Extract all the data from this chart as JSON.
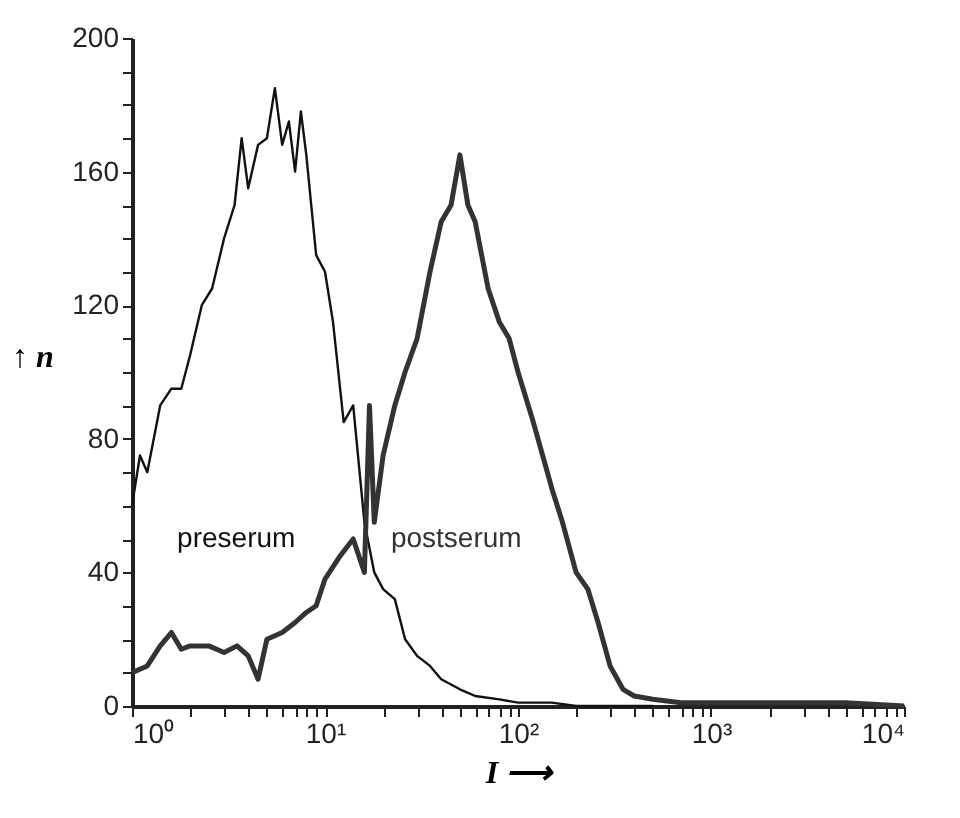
{
  "chart_data": {
    "type": "line",
    "xlabel": "I ⟶",
    "ylabel": "↑ n",
    "log": "x",
    "marker": "none",
    "line_style": "solid",
    "xlim": [
      1,
      10000
    ],
    "ylim": [
      0,
      200
    ],
    "xticks": [
      {
        "value": 1,
        "label": "10⁰"
      },
      {
        "value": 2,
        "label": null
      },
      {
        "value": 3,
        "label": null
      },
      {
        "value": 4,
        "label": null
      },
      {
        "value": 5,
        "label": null
      },
      {
        "value": 6,
        "label": null
      },
      {
        "value": 7,
        "label": null
      },
      {
        "value": 8,
        "label": null
      },
      {
        "value": 9,
        "label": null
      },
      {
        "value": 10,
        "label": "10¹"
      },
      {
        "value": 20,
        "label": null
      },
      {
        "value": 30,
        "label": null
      },
      {
        "value": 40,
        "label": null
      },
      {
        "value": 50,
        "label": null
      },
      {
        "value": 60,
        "label": null
      },
      {
        "value": 70,
        "label": null
      },
      {
        "value": 80,
        "label": null
      },
      {
        "value": 90,
        "label": null
      },
      {
        "value": 100,
        "label": "10²"
      },
      {
        "value": 200,
        "label": null
      },
      {
        "value": 300,
        "label": null
      },
      {
        "value": 400,
        "label": null
      },
      {
        "value": 500,
        "label": null
      },
      {
        "value": 600,
        "label": null
      },
      {
        "value": 700,
        "label": null
      },
      {
        "value": 800,
        "label": null
      },
      {
        "value": 900,
        "label": null
      },
      {
        "value": 1000,
        "label": "10³"
      },
      {
        "value": 2000,
        "label": null
      },
      {
        "value": 3000,
        "label": null
      },
      {
        "value": 4000,
        "label": null
      },
      {
        "value": 5000,
        "label": null
      },
      {
        "value": 6000,
        "label": null
      },
      {
        "value": 7000,
        "label": null
      },
      {
        "value": 8000,
        "label": null
      },
      {
        "value": 9000,
        "label": null
      },
      {
        "value": 10000,
        "label": "10⁴"
      }
    ],
    "yticks": [
      0,
      {
        "value": 10,
        "label": null
      },
      {
        "value": 20,
        "label": null
      },
      {
        "value": 30,
        "label": null
      },
      40,
      {
        "value": 50,
        "label": null
      },
      {
        "value": 60,
        "label": null
      },
      {
        "value": 70,
        "label": null
      },
      80,
      {
        "value": 90,
        "label": null
      },
      {
        "value": 100,
        "label": null
      },
      {
        "value": 110,
        "label": null
      },
      120,
      {
        "value": 130,
        "label": null
      },
      {
        "value": 140,
        "label": null
      },
      {
        "value": 150,
        "label": null
      },
      160,
      {
        "value": 170,
        "label": null
      },
      {
        "value": 180,
        "label": null
      },
      {
        "value": 190,
        "label": null
      },
      200
    ],
    "series": [
      {
        "name": "preserum",
        "color": "#111111",
        "x": [
          1,
          1.1,
          1.2,
          1.4,
          1.6,
          1.8,
          2,
          2.3,
          2.6,
          3,
          3.4,
          3.7,
          4,
          4.5,
          5,
          5.5,
          6,
          6.5,
          7,
          7.5,
          8,
          9,
          10,
          11,
          12.5,
          14,
          16,
          18,
          20,
          23,
          26,
          30,
          35,
          40,
          50,
          60,
          80,
          100,
          150,
          200,
          500
        ],
        "values": [
          60,
          75,
          70,
          90,
          95,
          95,
          105,
          120,
          125,
          140,
          150,
          170,
          155,
          168,
          170,
          185,
          168,
          175,
          160,
          178,
          165,
          135,
          130,
          115,
          85,
          90,
          55,
          40,
          35,
          32,
          20,
          15,
          12,
          8,
          5,
          3,
          2,
          1,
          1,
          0,
          0
        ]
      },
      {
        "name": "postserum",
        "color": "#333333",
        "x": [
          1,
          1.2,
          1.4,
          1.6,
          1.8,
          2,
          2.5,
          3,
          3.5,
          4,
          4.5,
          5,
          6,
          7,
          8,
          9,
          10,
          12,
          14,
          16,
          17,
          18,
          20,
          23,
          26,
          30,
          35,
          40,
          45,
          50,
          55,
          60,
          70,
          80,
          90,
          100,
          120,
          150,
          170,
          200,
          230,
          260,
          300,
          350,
          400,
          500,
          700,
          1000,
          2000,
          5000,
          10000
        ],
        "values": [
          10,
          12,
          18,
          22,
          17,
          18,
          18,
          16,
          18,
          15,
          8,
          20,
          22,
          25,
          28,
          30,
          38,
          45,
          50,
          40,
          90,
          55,
          75,
          90,
          100,
          110,
          130,
          145,
          150,
          165,
          150,
          145,
          125,
          115,
          110,
          100,
          85,
          65,
          55,
          40,
          35,
          25,
          12,
          5,
          3,
          2,
          1,
          1,
          1,
          1,
          0
        ]
      }
    ]
  }
}
